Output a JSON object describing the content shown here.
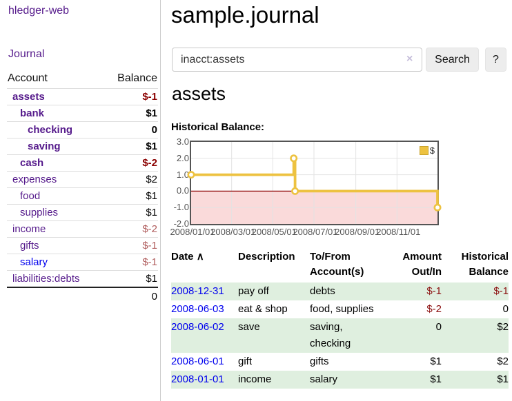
{
  "app": {
    "brand": "hledger-web",
    "nav": {
      "journal": "Journal"
    }
  },
  "header": {
    "title": "sample.journal"
  },
  "search": {
    "value": "inacct:assets",
    "clear_icon": "×",
    "button_label": "Search",
    "help_label": "?"
  },
  "sidebar": {
    "headers": {
      "account": "Account",
      "balance": "Balance"
    },
    "accounts": [
      {
        "name": "assets",
        "balance": "$-1",
        "level": 1,
        "bold": true,
        "balance_tone": "negative-dark"
      },
      {
        "name": "bank",
        "balance": "$1",
        "level": 2,
        "bold": true,
        "balance_tone": "normal"
      },
      {
        "name": "checking",
        "balance": "0",
        "level": 3,
        "bold": true,
        "balance_tone": "normal"
      },
      {
        "name": "saving",
        "balance": "$1",
        "level": 3,
        "bold": true,
        "balance_tone": "normal"
      },
      {
        "name": "cash",
        "balance": "$-2",
        "level": 2,
        "bold": true,
        "balance_tone": "negative-dark"
      },
      {
        "name": "expenses",
        "balance": "$2",
        "level": 1,
        "bold": false,
        "balance_tone": "normal"
      },
      {
        "name": "food",
        "balance": "$1",
        "level": 2,
        "bold": false,
        "balance_tone": "normal"
      },
      {
        "name": "supplies",
        "balance": "$1",
        "level": 2,
        "bold": false,
        "balance_tone": "normal"
      },
      {
        "name": "income",
        "balance": "$-2",
        "level": 1,
        "bold": false,
        "balance_tone": "negative-soft"
      },
      {
        "name": "gifts",
        "balance": "$-1",
        "level": 2,
        "bold": false,
        "balance_tone": "negative-soft"
      },
      {
        "name": "salary",
        "balance": "$-1",
        "level": 2,
        "bold": false,
        "balance_tone": "negative-soft",
        "link_color": "blue"
      },
      {
        "name": "liabilities:debts",
        "balance": "$1",
        "level": 1,
        "bold": false,
        "balance_tone": "normal"
      }
    ],
    "total": "0"
  },
  "account_page": {
    "title": "assets",
    "chart_label": "Historical Balance:"
  },
  "chart_data": {
    "type": "line",
    "step": true,
    "title": "Historical Balance",
    "x_range": [
      "2008-01-01",
      "2008-12-31"
    ],
    "ylim": [
      -2,
      3
    ],
    "ytick_labels": [
      "3.0",
      "2.0",
      "1.0",
      "0.0",
      "-1.0",
      "-2.0"
    ],
    "xtick_labels": [
      "2008/01/01",
      "2008/03/01",
      "2008/05/01",
      "2008/07/01",
      "2008/09/01",
      "2008/11/01"
    ],
    "series": [
      {
        "name": "$",
        "color": "#edc240",
        "points": [
          {
            "x": "2008-01-01",
            "y": 1
          },
          {
            "x": "2008-06-01",
            "y": 2
          },
          {
            "x": "2008-06-03",
            "y": 0
          },
          {
            "x": "2008-12-31",
            "y": -1
          }
        ]
      }
    ],
    "legend": {
      "label": "$",
      "position": "top-right"
    },
    "negative_band": {
      "from": 0,
      "to": -2,
      "color": "#fadada",
      "line_color": "#8b0000"
    },
    "grid": true,
    "gridline_color": "#e3e3e3"
  },
  "register": {
    "headers": {
      "date": "Date",
      "sort_icon": "∧",
      "description": "Description",
      "accounts": "To/From Account(s)",
      "amount": "Amount Out/In",
      "balance": "Historical Balance"
    },
    "rows": [
      {
        "date": "2008-12-31",
        "description": "pay off",
        "accounts": "debts",
        "amount": "$-1",
        "balance": "$-1"
      },
      {
        "date": "2008-06-03",
        "description": "eat & shop",
        "accounts": "food, supplies",
        "amount": "$-2",
        "balance": "0"
      },
      {
        "date": "2008-06-02",
        "description": "save",
        "accounts": "saving, checking",
        "amount": "0",
        "balance": "$2"
      },
      {
        "date": "2008-06-01",
        "description": "gift",
        "accounts": "gifts",
        "amount": "$1",
        "balance": "$2"
      },
      {
        "date": "2008-01-01",
        "description": "income",
        "accounts": "salary",
        "amount": "$1",
        "balance": "$1"
      }
    ]
  },
  "colors": {
    "link_purple": "#551a8b",
    "link_blue": "#0000ee",
    "negative_dark": "#8b0000",
    "negative_soft": "#b05d5d",
    "row_stripe_green": "#dfefdf",
    "chart_line_gold": "#edc240",
    "negative_region_pink": "#fadada",
    "zero_line_red": "#8b0000"
  }
}
